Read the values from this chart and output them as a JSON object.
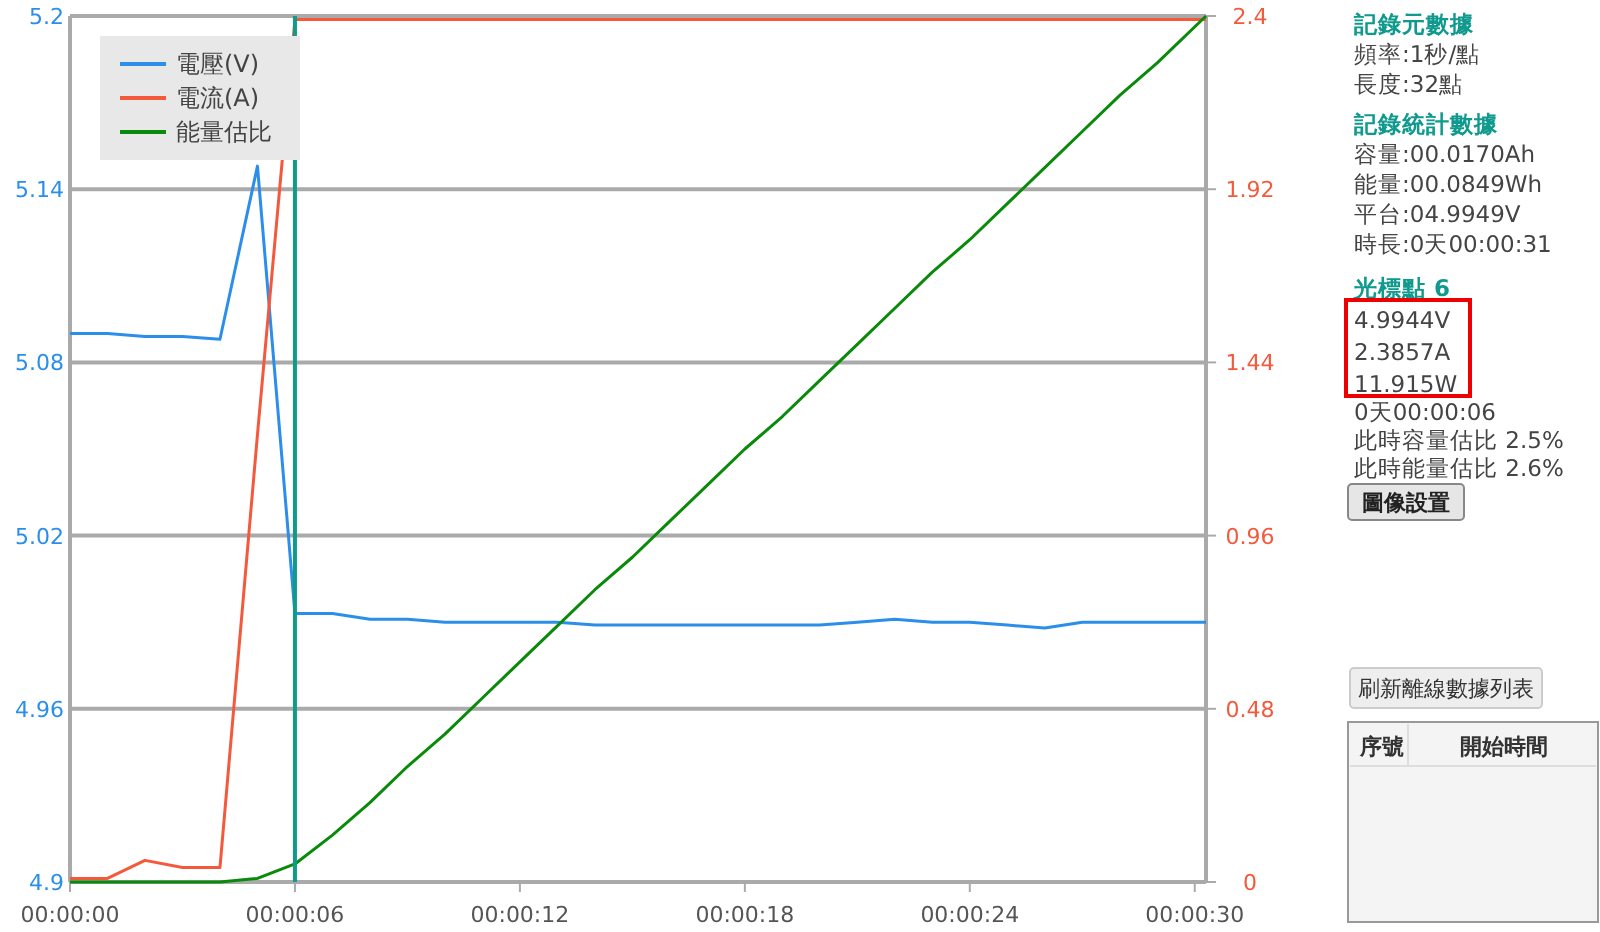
{
  "chart_data": {
    "type": "line",
    "x": [
      0,
      1,
      2,
      3,
      4,
      5,
      6,
      7,
      8,
      9,
      10,
      11,
      12,
      13,
      14,
      15,
      16,
      17,
      18,
      19,
      20,
      21,
      22,
      23,
      24,
      25,
      26,
      27,
      28,
      29,
      30.3
    ],
    "xlim": [
      0,
      30.3
    ],
    "xticks": [
      {
        "value": 0,
        "label": "00:00:00"
      },
      {
        "value": 6,
        "label": "00:00:06"
      },
      {
        "value": 12,
        "label": "00:00:12"
      },
      {
        "value": 18,
        "label": "00:00:18"
      },
      {
        "value": 24,
        "label": "00:00:24"
      },
      {
        "value": 30,
        "label": "00:00:30"
      }
    ],
    "ylim": [
      4.9,
      5.2
    ],
    "yticks": [
      4.9,
      4.96,
      5.02,
      5.08,
      5.14,
      5.2
    ],
    "y2lim": [
      0,
      2.4
    ],
    "y2ticks": [
      0,
      0.48,
      0.96,
      1.44,
      1.92,
      2.4
    ],
    "series": [
      {
        "name": "電壓(V)",
        "color": "#2b8fea",
        "values": [
          5.09,
          5.09,
          5.089,
          5.089,
          5.088,
          5.148,
          4.993,
          4.993,
          4.991,
          4.991,
          4.99,
          4.99,
          4.99,
          4.99,
          4.989,
          4.989,
          4.989,
          4.989,
          4.989,
          4.989,
          4.989,
          4.99,
          4.991,
          4.99,
          4.99,
          4.989,
          4.988,
          4.99,
          4.99,
          4.99,
          4.99
        ]
      },
      {
        "name": "電流(A)",
        "color": "#f4593b",
        "axis": "y2",
        "values": [
          0.01,
          0.01,
          0.06,
          0.04,
          0.04,
          1.24,
          2.39,
          2.39,
          2.39,
          2.39,
          2.39,
          2.39,
          2.39,
          2.39,
          2.39,
          2.39,
          2.39,
          2.39,
          2.39,
          2.39,
          2.39,
          2.39,
          2.39,
          2.39,
          2.39,
          2.39,
          2.39,
          2.39,
          2.39,
          2.39,
          2.39
        ]
      },
      {
        "name": "能量估比",
        "color": "#0a8a0a",
        "axis": "y2",
        "values": [
          0,
          0,
          0,
          0,
          0,
          0.01,
          0.05,
          0.13,
          0.22,
          0.32,
          0.41,
          0.51,
          0.61,
          0.71,
          0.81,
          0.9,
          1.0,
          1.1,
          1.2,
          1.29,
          1.39,
          1.49,
          1.59,
          1.69,
          1.78,
          1.88,
          1.98,
          2.08,
          2.18,
          2.27,
          2.4
        ]
      }
    ],
    "ref_lines": [
      {
        "axis": "x",
        "value": 6,
        "color": "#0f9a8a"
      }
    ],
    "grid": "y",
    "legend": "top left",
    "annotations": [
      "記錄元數據",
      "頻率:1秒/點",
      "長度:32點",
      "記錄統計數據",
      "容量:00.0170Ah",
      "能量:00.0849Wh",
      "平台:04.9949V",
      "時長:0天00:00:31",
      "光標點 6",
      "4.9944V",
      "2.3857A",
      "11.915W",
      "0天00:00:06",
      "此時容量估比 2.5%",
      "此時能量估比 2.6%",
      "圖像設置",
      "刷新離線數據列表",
      "序號",
      "開始時間"
    ]
  }
}
